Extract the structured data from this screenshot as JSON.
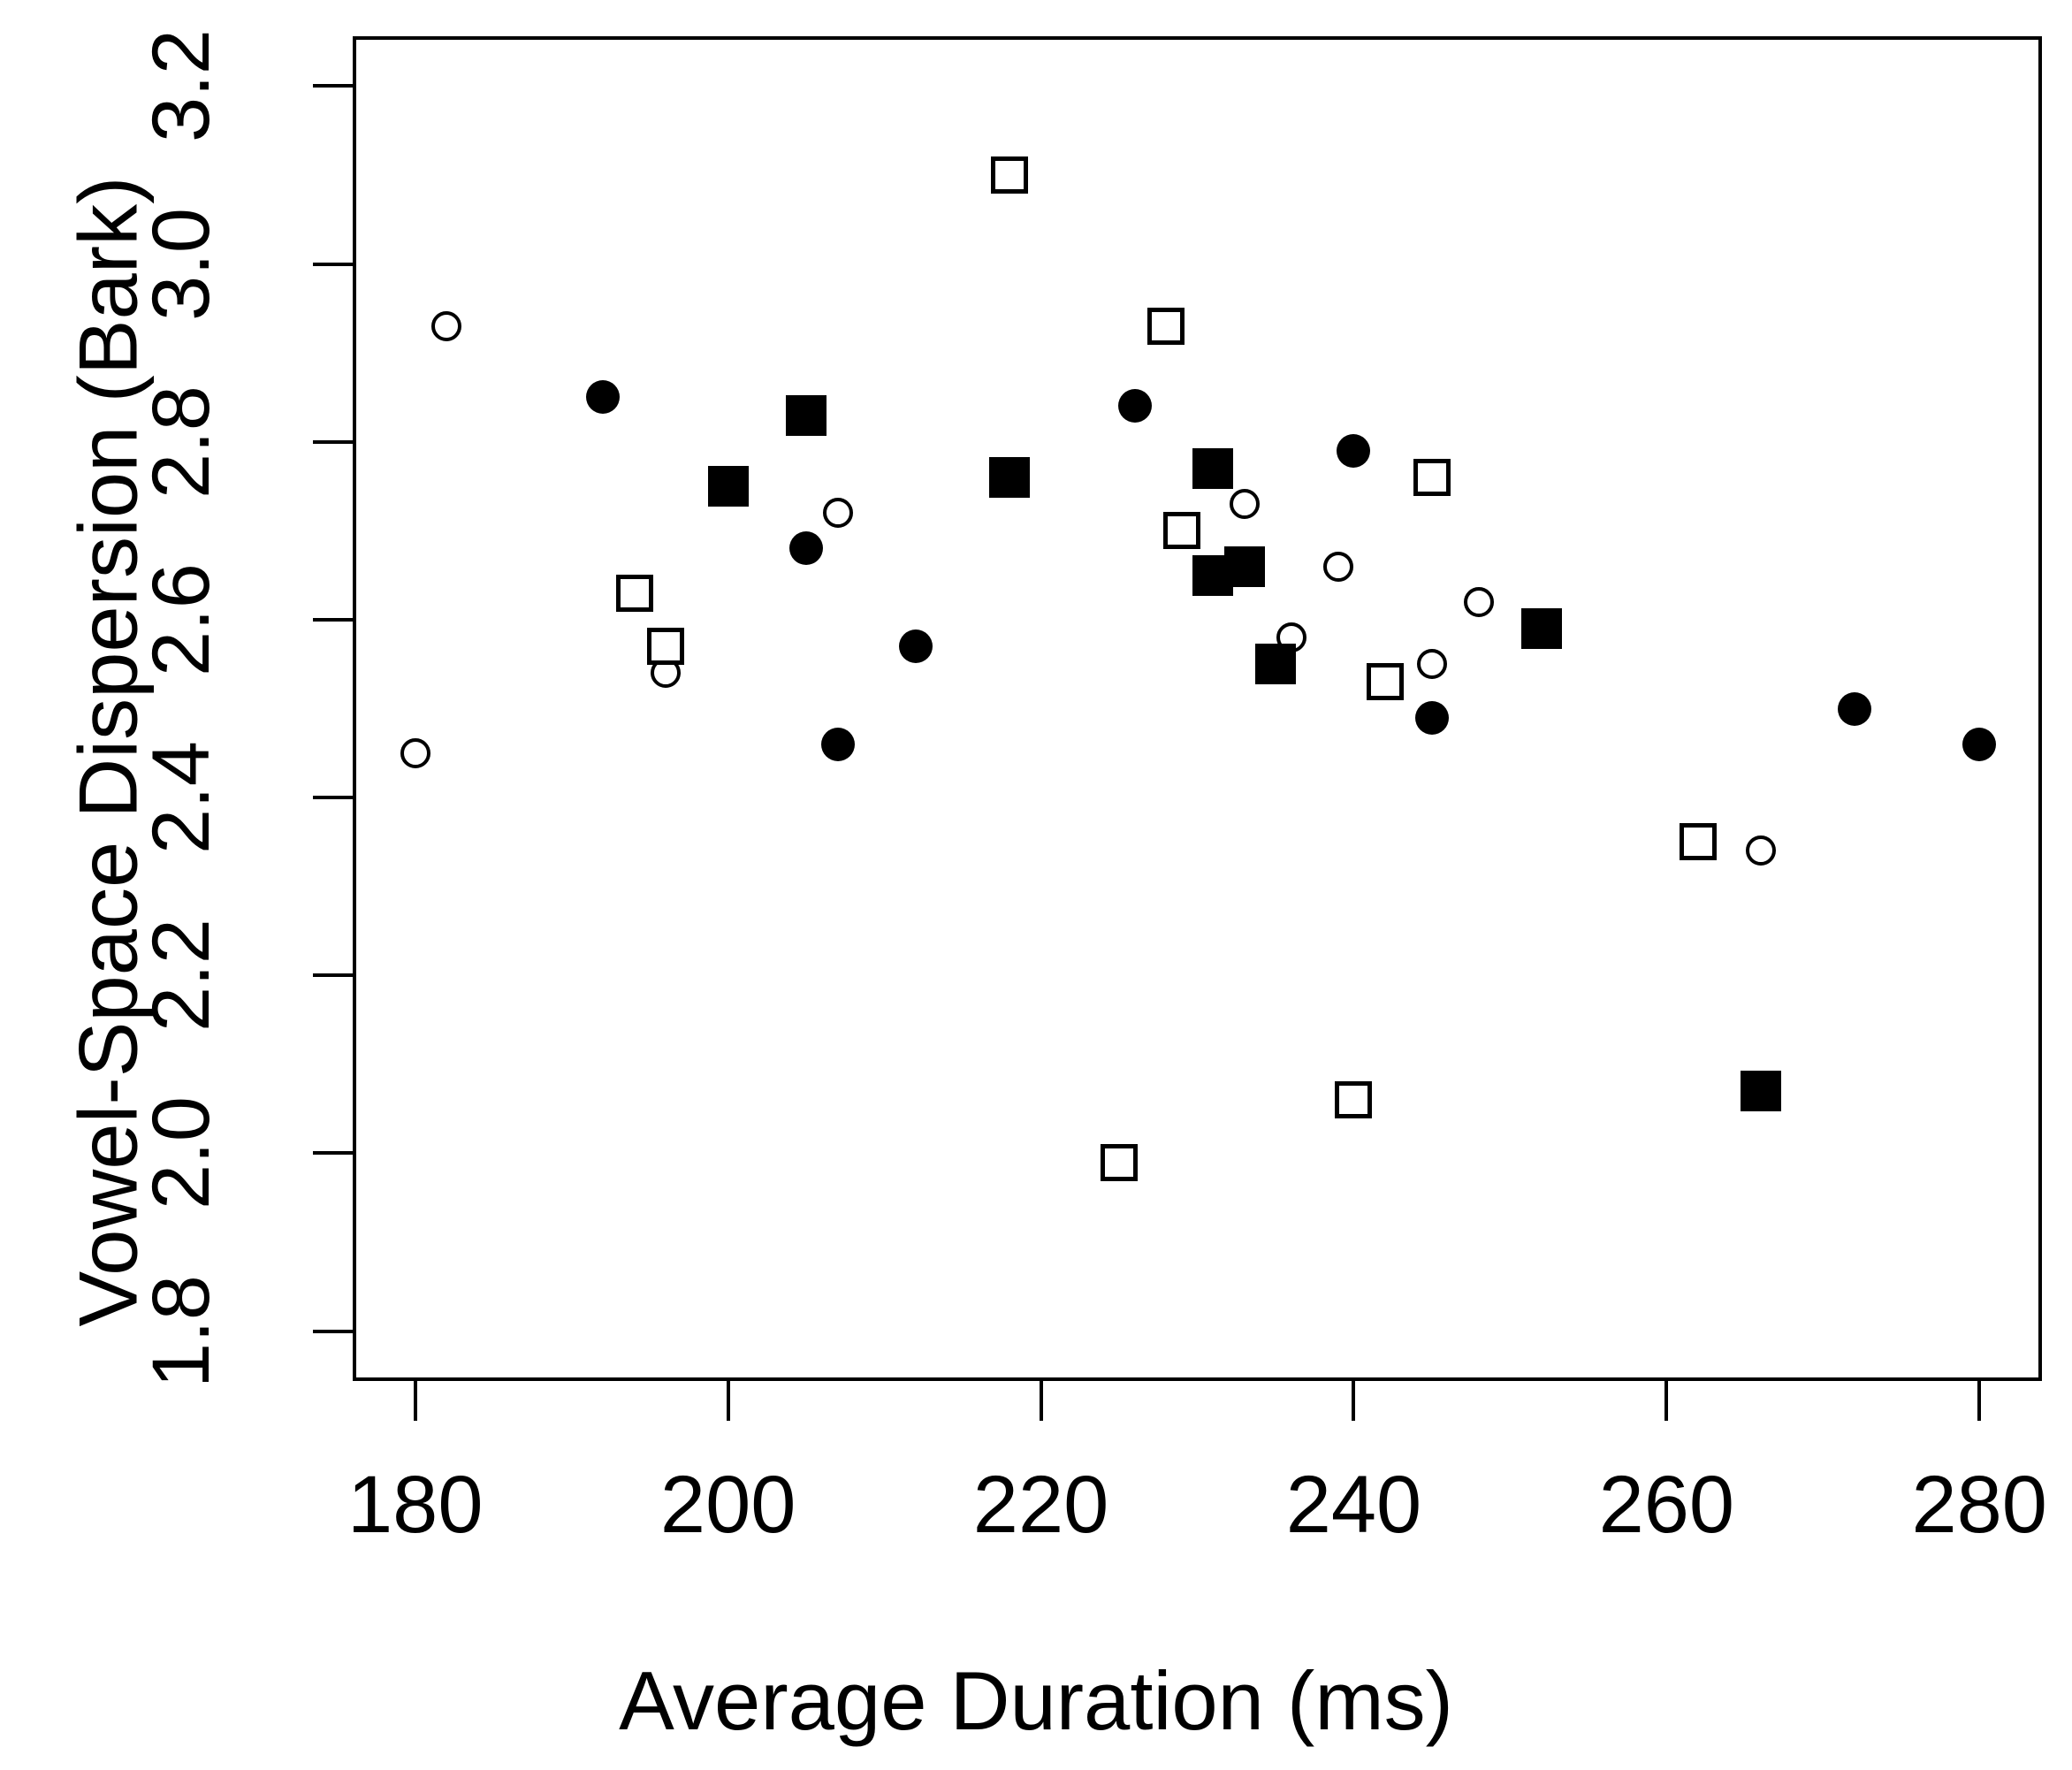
{
  "colors": {
    "foreground": "#000000",
    "background": "#ffffff"
  },
  "chart_data": {
    "type": "scatter",
    "title": "",
    "xlabel": "Average Duration (ms)",
    "ylabel": "Vowel-Space Dispersion (Bark)",
    "grid": false,
    "legend": "none",
    "xlim": [
      176,
      284
    ],
    "ylim": [
      1.744,
      3.256
    ],
    "x_ticks": [
      {
        "value": 180,
        "label": "180"
      },
      {
        "value": 200,
        "label": "200"
      },
      {
        "value": 220,
        "label": "220"
      },
      {
        "value": 240,
        "label": "240"
      },
      {
        "value": 260,
        "label": "260"
      },
      {
        "value": 280,
        "label": "280"
      }
    ],
    "y_ticks": [
      {
        "value": 3.2,
        "label": "3.2"
      },
      {
        "value": 3.0,
        "label": "3.0"
      },
      {
        "value": 2.8,
        "label": "2.8"
      },
      {
        "value": 2.6,
        "label": "2.6"
      },
      {
        "value": 2.4,
        "label": "2.4"
      },
      {
        "value": 2.2,
        "label": "2.2"
      },
      {
        "value": 2.0,
        "label": "2.0"
      },
      {
        "value": 1.8,
        "label": "1.8"
      }
    ],
    "series": [
      {
        "name": "open-circle",
        "marker": "circle-open",
        "points": [
          [
            182,
            2.93
          ],
          [
            207,
            2.72
          ],
          [
            196,
            2.54
          ],
          [
            180,
            2.45
          ],
          [
            233,
            2.73
          ],
          [
            239,
            2.66
          ],
          [
            236,
            2.58
          ],
          [
            245,
            2.55
          ],
          [
            248,
            2.62
          ],
          [
            266,
            2.34
          ]
        ]
      },
      {
        "name": "filled-circle",
        "marker": "circle-filled",
        "points": [
          [
            192,
            2.85
          ],
          [
            205,
            2.68
          ],
          [
            212,
            2.57
          ],
          [
            207,
            2.46
          ],
          [
            226,
            2.84
          ],
          [
            240,
            2.79
          ],
          [
            245,
            2.49
          ],
          [
            272,
            2.5
          ],
          [
            280,
            2.46
          ]
        ]
      },
      {
        "name": "filled-square",
        "marker": "square-filled",
        "points": [
          [
            205,
            2.83
          ],
          [
            200,
            2.75
          ],
          [
            218,
            2.76
          ],
          [
            231,
            2.77
          ],
          [
            231,
            2.65
          ],
          [
            233,
            2.66
          ],
          [
            235,
            2.55
          ],
          [
            252,
            2.59
          ],
          [
            266,
            2.07
          ]
        ]
      },
      {
        "name": "open-square",
        "marker": "square-open",
        "points": [
          [
            194,
            2.63
          ],
          [
            196,
            2.57
          ],
          [
            218,
            3.1
          ],
          [
            228,
            2.93
          ],
          [
            229,
            2.7
          ],
          [
            245,
            2.76
          ],
          [
            242,
            2.53
          ],
          [
            262,
            2.35
          ],
          [
            240,
            2.06
          ],
          [
            225,
            1.99
          ]
        ]
      }
    ]
  }
}
